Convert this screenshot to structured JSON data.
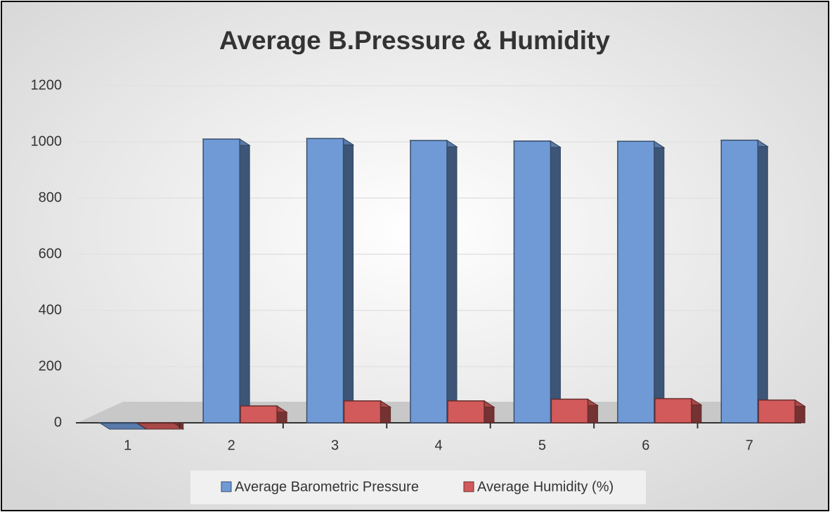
{
  "chart_data": {
    "type": "bar3d",
    "title": "Average B.Pressure & Humidity",
    "categories": [
      "1",
      "2",
      "3",
      "4",
      "5",
      "6",
      "7"
    ],
    "series": [
      {
        "name": "Average Barometric Pressure",
        "color": "#6f9ad6",
        "values": [
          0,
          1010,
          1012,
          1005,
          1003,
          1002,
          1006
        ]
      },
      {
        "name": "Average Humidity (%)",
        "color": "#d25a5a",
        "values": [
          0,
          60,
          78,
          78,
          84,
          86,
          81
        ]
      }
    ],
    "ylim": [
      0,
      1200
    ],
    "yticks": [
      0,
      200,
      400,
      600,
      800,
      1000,
      1200
    ],
    "grid": true,
    "legend": "bottom"
  }
}
